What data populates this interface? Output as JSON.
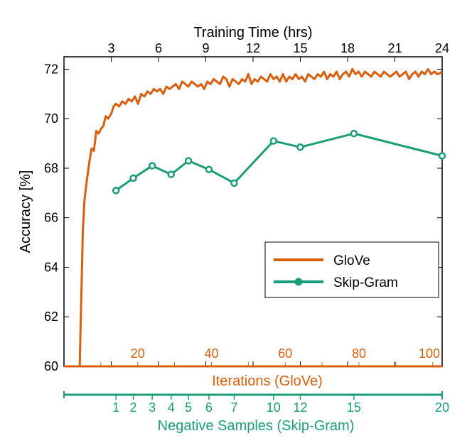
{
  "chart_data": {
    "type": "line",
    "top_axis": {
      "label": "Training Time (hrs)",
      "ticks": [
        3,
        6,
        9,
        12,
        15,
        18,
        21,
        24
      ],
      "range": [
        0,
        24
      ]
    },
    "y_axis": {
      "label": "Accuracy [%]",
      "ticks": [
        60,
        62,
        64,
        66,
        68,
        70,
        72
      ],
      "range": [
        60,
        72.5
      ]
    },
    "bottom_axis_glove": {
      "label": "Iterations (GloVe)",
      "ticks": [
        20,
        40,
        60,
        80,
        100
      ],
      "color": "#d95f0e"
    },
    "bottom_axis_skipgram": {
      "label": "Negative Samples (Skip-Gram)",
      "ticks": [
        1,
        2,
        3,
        4,
        5,
        6,
        7,
        10,
        12,
        15,
        20
      ],
      "color": "#1b9e77"
    },
    "legend": {
      "position": "bottom-right",
      "entries": [
        "GloVe",
        "Skip-Gram"
      ]
    },
    "series": [
      {
        "name": "GloVe",
        "color": "#d95f0e",
        "marker": "none",
        "x_hours": [
          1.0,
          1.05,
          1.1,
          1.15,
          1.2,
          1.3,
          1.45,
          1.6,
          1.75,
          1.9,
          2.05,
          2.2,
          2.35,
          2.5,
          2.65,
          2.8,
          3.0,
          3.15,
          3.3,
          3.5,
          3.7,
          3.9,
          4.1,
          4.3,
          4.5,
          4.7,
          4.9,
          5.1,
          5.3,
          5.5,
          5.7,
          5.9,
          6.1,
          6.3,
          6.5,
          6.7,
          6.9,
          7.1,
          7.3,
          7.5,
          7.7,
          7.9,
          8.1,
          8.3,
          8.5,
          8.7,
          8.9,
          9.1,
          9.3,
          9.5,
          9.7,
          9.9,
          10.1,
          10.3,
          10.5,
          10.7,
          10.9,
          11.1,
          11.3,
          11.5,
          11.7,
          11.9,
          12.1,
          12.3,
          12.5,
          12.7,
          12.9,
          13.1,
          13.3,
          13.5,
          13.7,
          13.9,
          14.1,
          14.3,
          14.5,
          14.7,
          14.9,
          15.1,
          15.3,
          15.5,
          15.7,
          15.9,
          16.1,
          16.3,
          16.5,
          16.7,
          16.9,
          17.1,
          17.3,
          17.5,
          17.7,
          17.9,
          18.1,
          18.3,
          18.5,
          18.7,
          18.9,
          19.1,
          19.3,
          19.5,
          19.7,
          19.9,
          20.1,
          20.3,
          20.5,
          20.7,
          20.9,
          21.1,
          21.3,
          21.5,
          21.7,
          21.9,
          22.1,
          22.3,
          22.5,
          22.7,
          22.9,
          23.1,
          23.3,
          23.5,
          23.7,
          23.9,
          24.0
        ],
        "accuracy": [
          60.0,
          61.5,
          62.8,
          64.2,
          65.5,
          66.7,
          67.5,
          68.2,
          68.8,
          68.7,
          69.5,
          69.4,
          69.6,
          69.7,
          70.1,
          70.0,
          70.2,
          70.5,
          70.6,
          70.5,
          70.7,
          70.6,
          70.8,
          70.7,
          70.9,
          70.6,
          71.0,
          70.9,
          71.1,
          71.0,
          71.2,
          71.1,
          71.2,
          71.0,
          71.3,
          71.2,
          71.3,
          71.4,
          71.2,
          71.5,
          71.4,
          71.3,
          71.5,
          71.4,
          71.3,
          71.4,
          71.2,
          71.5,
          71.4,
          71.6,
          71.5,
          71.4,
          71.7,
          71.6,
          71.3,
          71.6,
          71.5,
          71.4,
          71.6,
          71.5,
          71.8,
          71.4,
          71.6,
          71.5,
          71.7,
          71.6,
          71.5,
          71.8,
          71.6,
          71.7,
          71.5,
          71.8,
          71.5,
          71.7,
          71.6,
          71.8,
          71.6,
          71.7,
          71.5,
          71.8,
          71.7,
          71.6,
          71.8,
          71.7,
          71.9,
          71.6,
          71.8,
          71.7,
          71.9,
          71.6,
          71.8,
          71.9,
          71.7,
          72.0,
          71.8,
          71.9,
          71.7,
          71.9,
          71.8,
          71.7,
          71.9,
          71.8,
          71.7,
          71.9,
          71.8,
          71.7,
          71.8,
          71.9,
          71.7,
          71.8,
          71.9,
          71.6,
          71.8,
          71.9,
          71.7,
          71.9,
          71.8,
          72.0,
          71.8,
          71.9,
          71.8,
          71.85,
          71.9
        ]
      },
      {
        "name": "Skip-Gram",
        "color": "#1b9e77",
        "marker": "circle",
        "negative_samples": [
          1,
          2,
          3,
          4,
          5,
          6,
          7,
          10,
          12,
          15,
          20
        ],
        "x_hours": [
          3.3,
          4.4,
          5.6,
          6.8,
          7.9,
          9.2,
          10.8,
          13.3,
          15.0,
          18.4,
          24.0
        ],
        "accuracy": [
          67.1,
          67.6,
          68.1,
          67.75,
          68.3,
          67.95,
          67.4,
          69.1,
          68.85,
          69.4,
          68.5
        ]
      }
    ]
  }
}
